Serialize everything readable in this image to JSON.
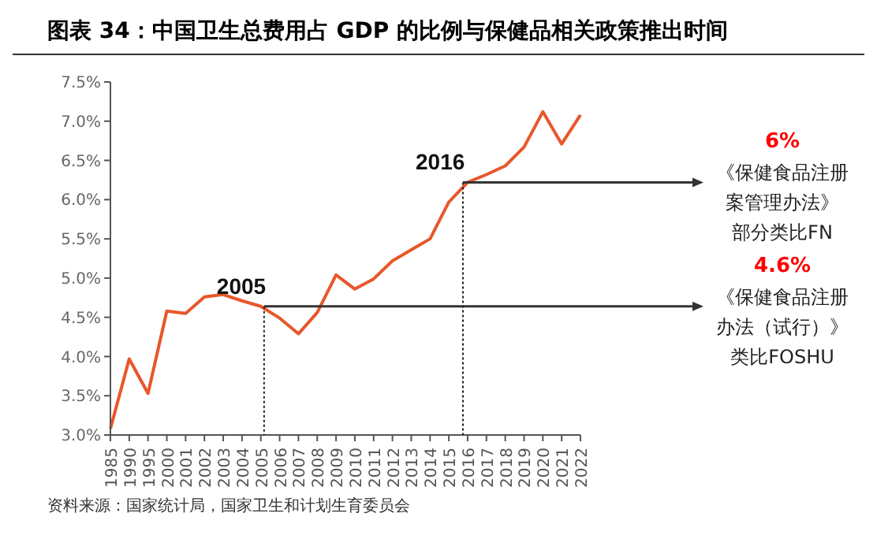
{
  "chart_data": {
    "type": "line",
    "title": "图表 34：中国卫生总费用占 GDP 的比例与保健品相关政策推出时间",
    "categories": [
      "1985",
      "1990",
      "1995",
      "2000",
      "2001",
      "2002",
      "2003",
      "2004",
      "2005",
      "2006",
      "2007",
      "2008",
      "2009",
      "2010",
      "2011",
      "2012",
      "2013",
      "2014",
      "2015",
      "2016",
      "2017",
      "2018",
      "2019",
      "2020",
      "2021",
      "2022"
    ],
    "series": [
      {
        "color": "#e8572a",
        "values": [
          3.08,
          3.97,
          3.53,
          4.58,
          4.55,
          4.76,
          4.79,
          4.71,
          4.64,
          4.49,
          4.29,
          4.56,
          5.04,
          4.86,
          4.99,
          5.22,
          5.36,
          5.5,
          5.97,
          6.22,
          6.32,
          6.43,
          6.67,
          7.12,
          6.71,
          7.08
        ]
      }
    ],
    "ylim": [
      3.0,
      7.5
    ],
    "yticks": [
      {
        "value": 3.0,
        "label": "3.0%"
      },
      {
        "value": 3.5,
        "label": "3.5%"
      },
      {
        "value": 4.0,
        "label": "4.0%"
      },
      {
        "value": 4.5,
        "label": "4.5%"
      },
      {
        "value": 5.0,
        "label": "5.0%"
      },
      {
        "value": 5.5,
        "label": "5.5%"
      },
      {
        "value": 6.0,
        "label": "6.0%"
      },
      {
        "value": 6.5,
        "label": "6.5%"
      },
      {
        "value": 7.0,
        "label": "7.0%"
      },
      {
        "value": 7.5,
        "label": "7.5%"
      }
    ],
    "ref_lines": [
      {
        "axis": "y",
        "value": 4.64,
        "color": "#333333"
      },
      {
        "axis": "y",
        "value": 6.22,
        "color": "#333333"
      }
    ],
    "grid": false,
    "legend": false,
    "marker": "none",
    "line_style": "solid",
    "annotations": [
      {
        "text": "2005",
        "x": "2005",
        "y": 4.64
      },
      {
        "text": "2016",
        "x": "2016",
        "y": 6.22
      },
      "4.6%",
      "《保健食品注册",
      "办法（试行）》",
      "类比FOSHU",
      "6%",
      "《保健食品注册",
      "案管理办法》",
      "部分类比FN",
      "资料来源：国家统计局，国家卫生和计划生育委员会"
    ]
  }
}
